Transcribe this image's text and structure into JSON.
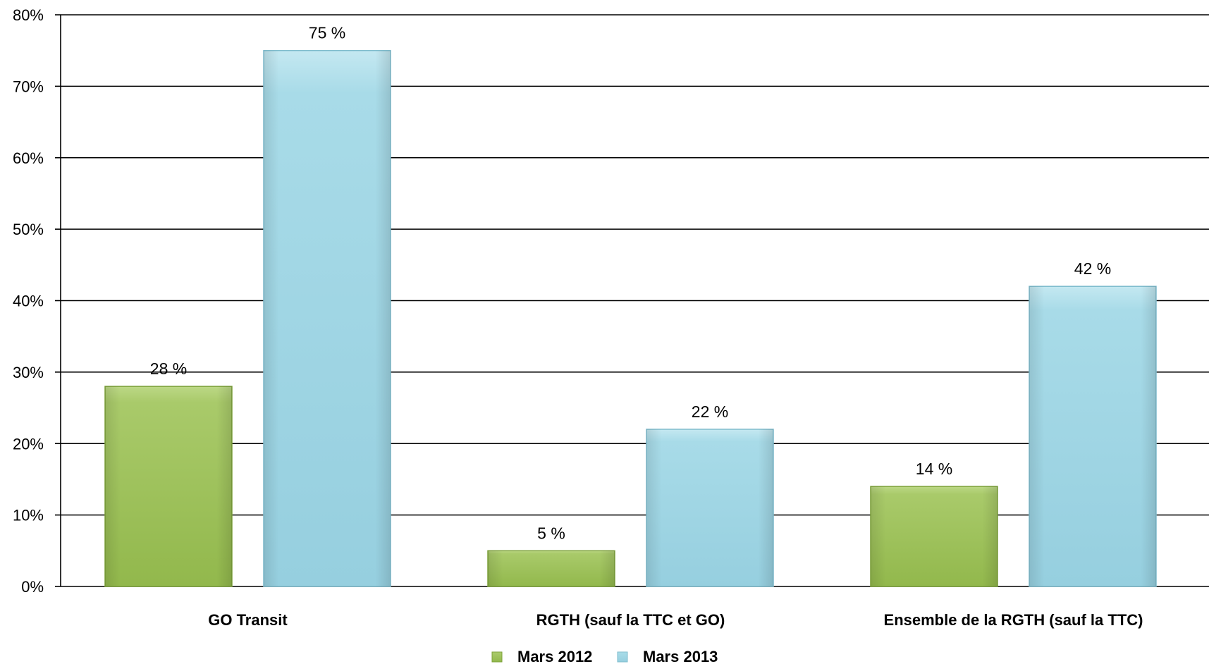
{
  "chart_data": {
    "type": "bar",
    "categories": [
      "GO Transit",
      "RGTH (sauf la TTC et GO)",
      "Ensemble de la RGTH (sauf la TTC)"
    ],
    "series": [
      {
        "name": "Mars 2012",
        "values": [
          28,
          5,
          14
        ],
        "labels": [
          "28 %",
          "5 %",
          "14 %"
        ],
        "color": "#9fc15a"
      },
      {
        "name": "Mars 2013",
        "values": [
          75,
          22,
          42
        ],
        "labels": [
          "75 %",
          "22 %",
          "42 %"
        ],
        "color": "#9ed7e6"
      }
    ],
    "ylim": [
      0,
      80
    ],
    "yticks": [
      0,
      10,
      20,
      30,
      40,
      50,
      60,
      70,
      80
    ],
    "ytick_labels": [
      "0%",
      "10%",
      "20%",
      "30%",
      "40%",
      "50%",
      "60%",
      "70%",
      "80%"
    ],
    "grid": true,
    "legend_position": "bottom-center"
  }
}
